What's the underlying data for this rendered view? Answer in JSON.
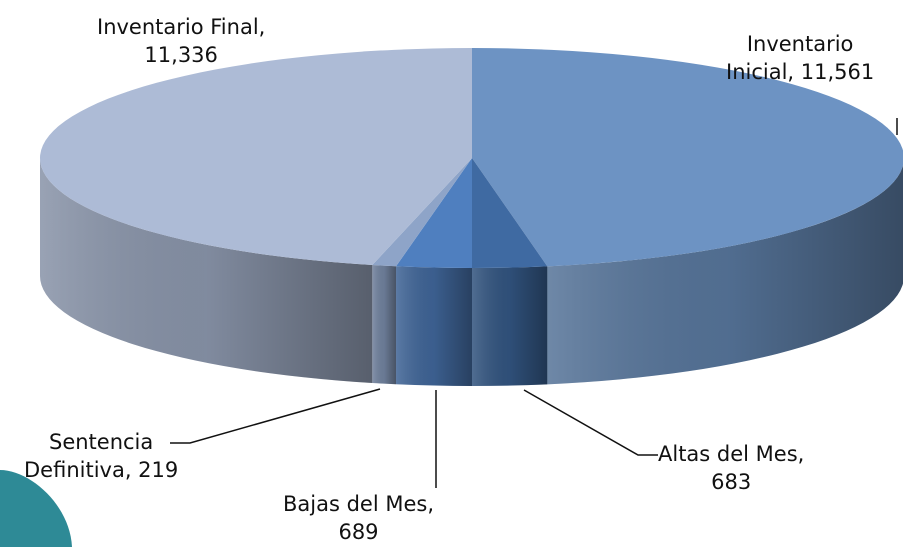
{
  "chart_data": {
    "type": "pie",
    "style": "3d",
    "title": "",
    "slices": [
      {
        "name": "Inventario Inicial",
        "value": 11561,
        "color": "#6d93c3"
      },
      {
        "name": "Altas del Mes",
        "value": 683,
        "color": "#3f6aa2"
      },
      {
        "name": "Bajas del Mes",
        "value": 689,
        "color": "#4f7fbf"
      },
      {
        "name": "Sentencia Definitiva",
        "value": 219,
        "color": "#8ea4c8"
      },
      {
        "name": "Inventario Final",
        "value": 11336,
        "color": "#adbbd6"
      }
    ],
    "labels": [
      {
        "line1": "Inventario",
        "line2": "Inicial, 11,561"
      },
      {
        "line1": "Altas del Mes,",
        "line2": "683"
      },
      {
        "line1": "Bajas del Mes,",
        "line2": "689"
      },
      {
        "line1": "Sentencia",
        "line2": "Definitiva, 219"
      },
      {
        "line1": "Inventario Final,",
        "line2": "11,336"
      }
    ]
  },
  "colors": {
    "decoration": "#2e8a96"
  }
}
